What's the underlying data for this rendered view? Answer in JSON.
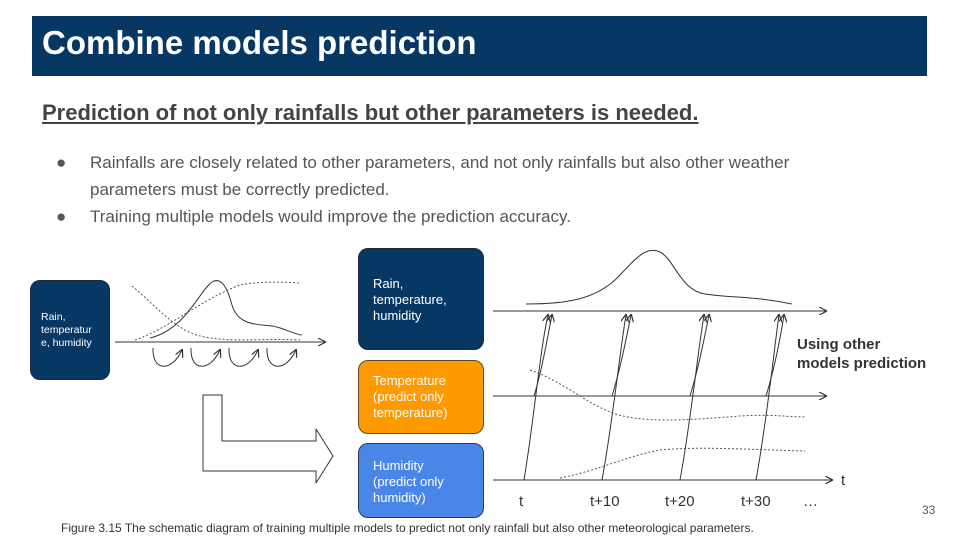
{
  "slide": {
    "title": "Combine models prediction",
    "subtitle": "Prediction of not only rainfalls but other parameters is needed.",
    "bullets": [
      "Rainfalls are closely related to other parameters, and not only rainfalls but also other weather parameters must be correctly predicted.",
      "Training multiple models would improve the prediction accuracy."
    ],
    "bullet_marker": "●",
    "page_number": "33"
  },
  "diagram": {
    "left_box": {
      "lines": [
        "Rain,",
        "temperatur",
        "e, humidity"
      ],
      "color": "#073763"
    },
    "model_boxes": [
      {
        "lines": [
          "Rain,",
          "temperature,",
          "humidity"
        ],
        "color": "#073763"
      },
      {
        "lines": [
          "Temperature",
          "(predict only",
          "temperature)"
        ],
        "color": "#ff9900"
      },
      {
        "lines": [
          "Humidity",
          "(predict only",
          "humidity)"
        ],
        "color": "#4a86e8"
      }
    ],
    "side_label": [
      "Using other",
      "models prediction"
    ],
    "time_ticks": [
      "t",
      "t+10",
      "t+20",
      "t+30",
      "…"
    ],
    "axis_label": "t",
    "icons": [
      "big-right-arrow-icon",
      "loop-arrow-icon"
    ]
  },
  "caption": "Figure 3.15 The schematic diagram of training multiple models to predict not only rainfall but also other meteorological parameters."
}
